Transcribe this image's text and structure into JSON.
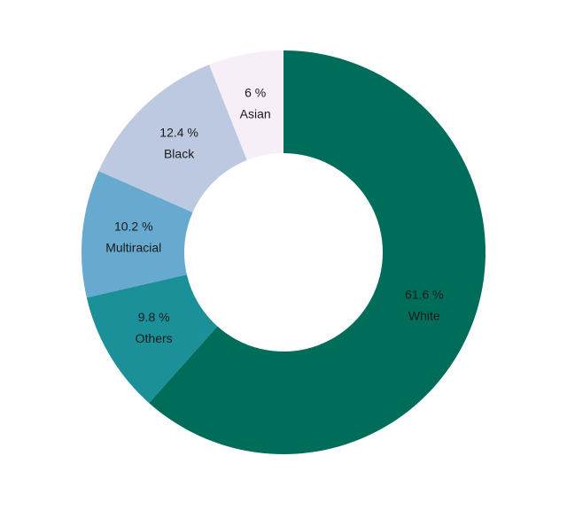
{
  "chart_data": {
    "type": "donut",
    "categories": [
      "White",
      "Others",
      "Multiracial",
      "Black",
      "Asian"
    ],
    "values": [
      61.6,
      9.8,
      10.2,
      12.4,
      6
    ],
    "value_labels": [
      "61.6 %",
      "9.8 %",
      "10.2 %",
      "12.4 %",
      "6 %"
    ],
    "colors": [
      "#006d5b",
      "#1c9099",
      "#67a9cf",
      "#bdc9e1",
      "#f6eff7"
    ]
  }
}
